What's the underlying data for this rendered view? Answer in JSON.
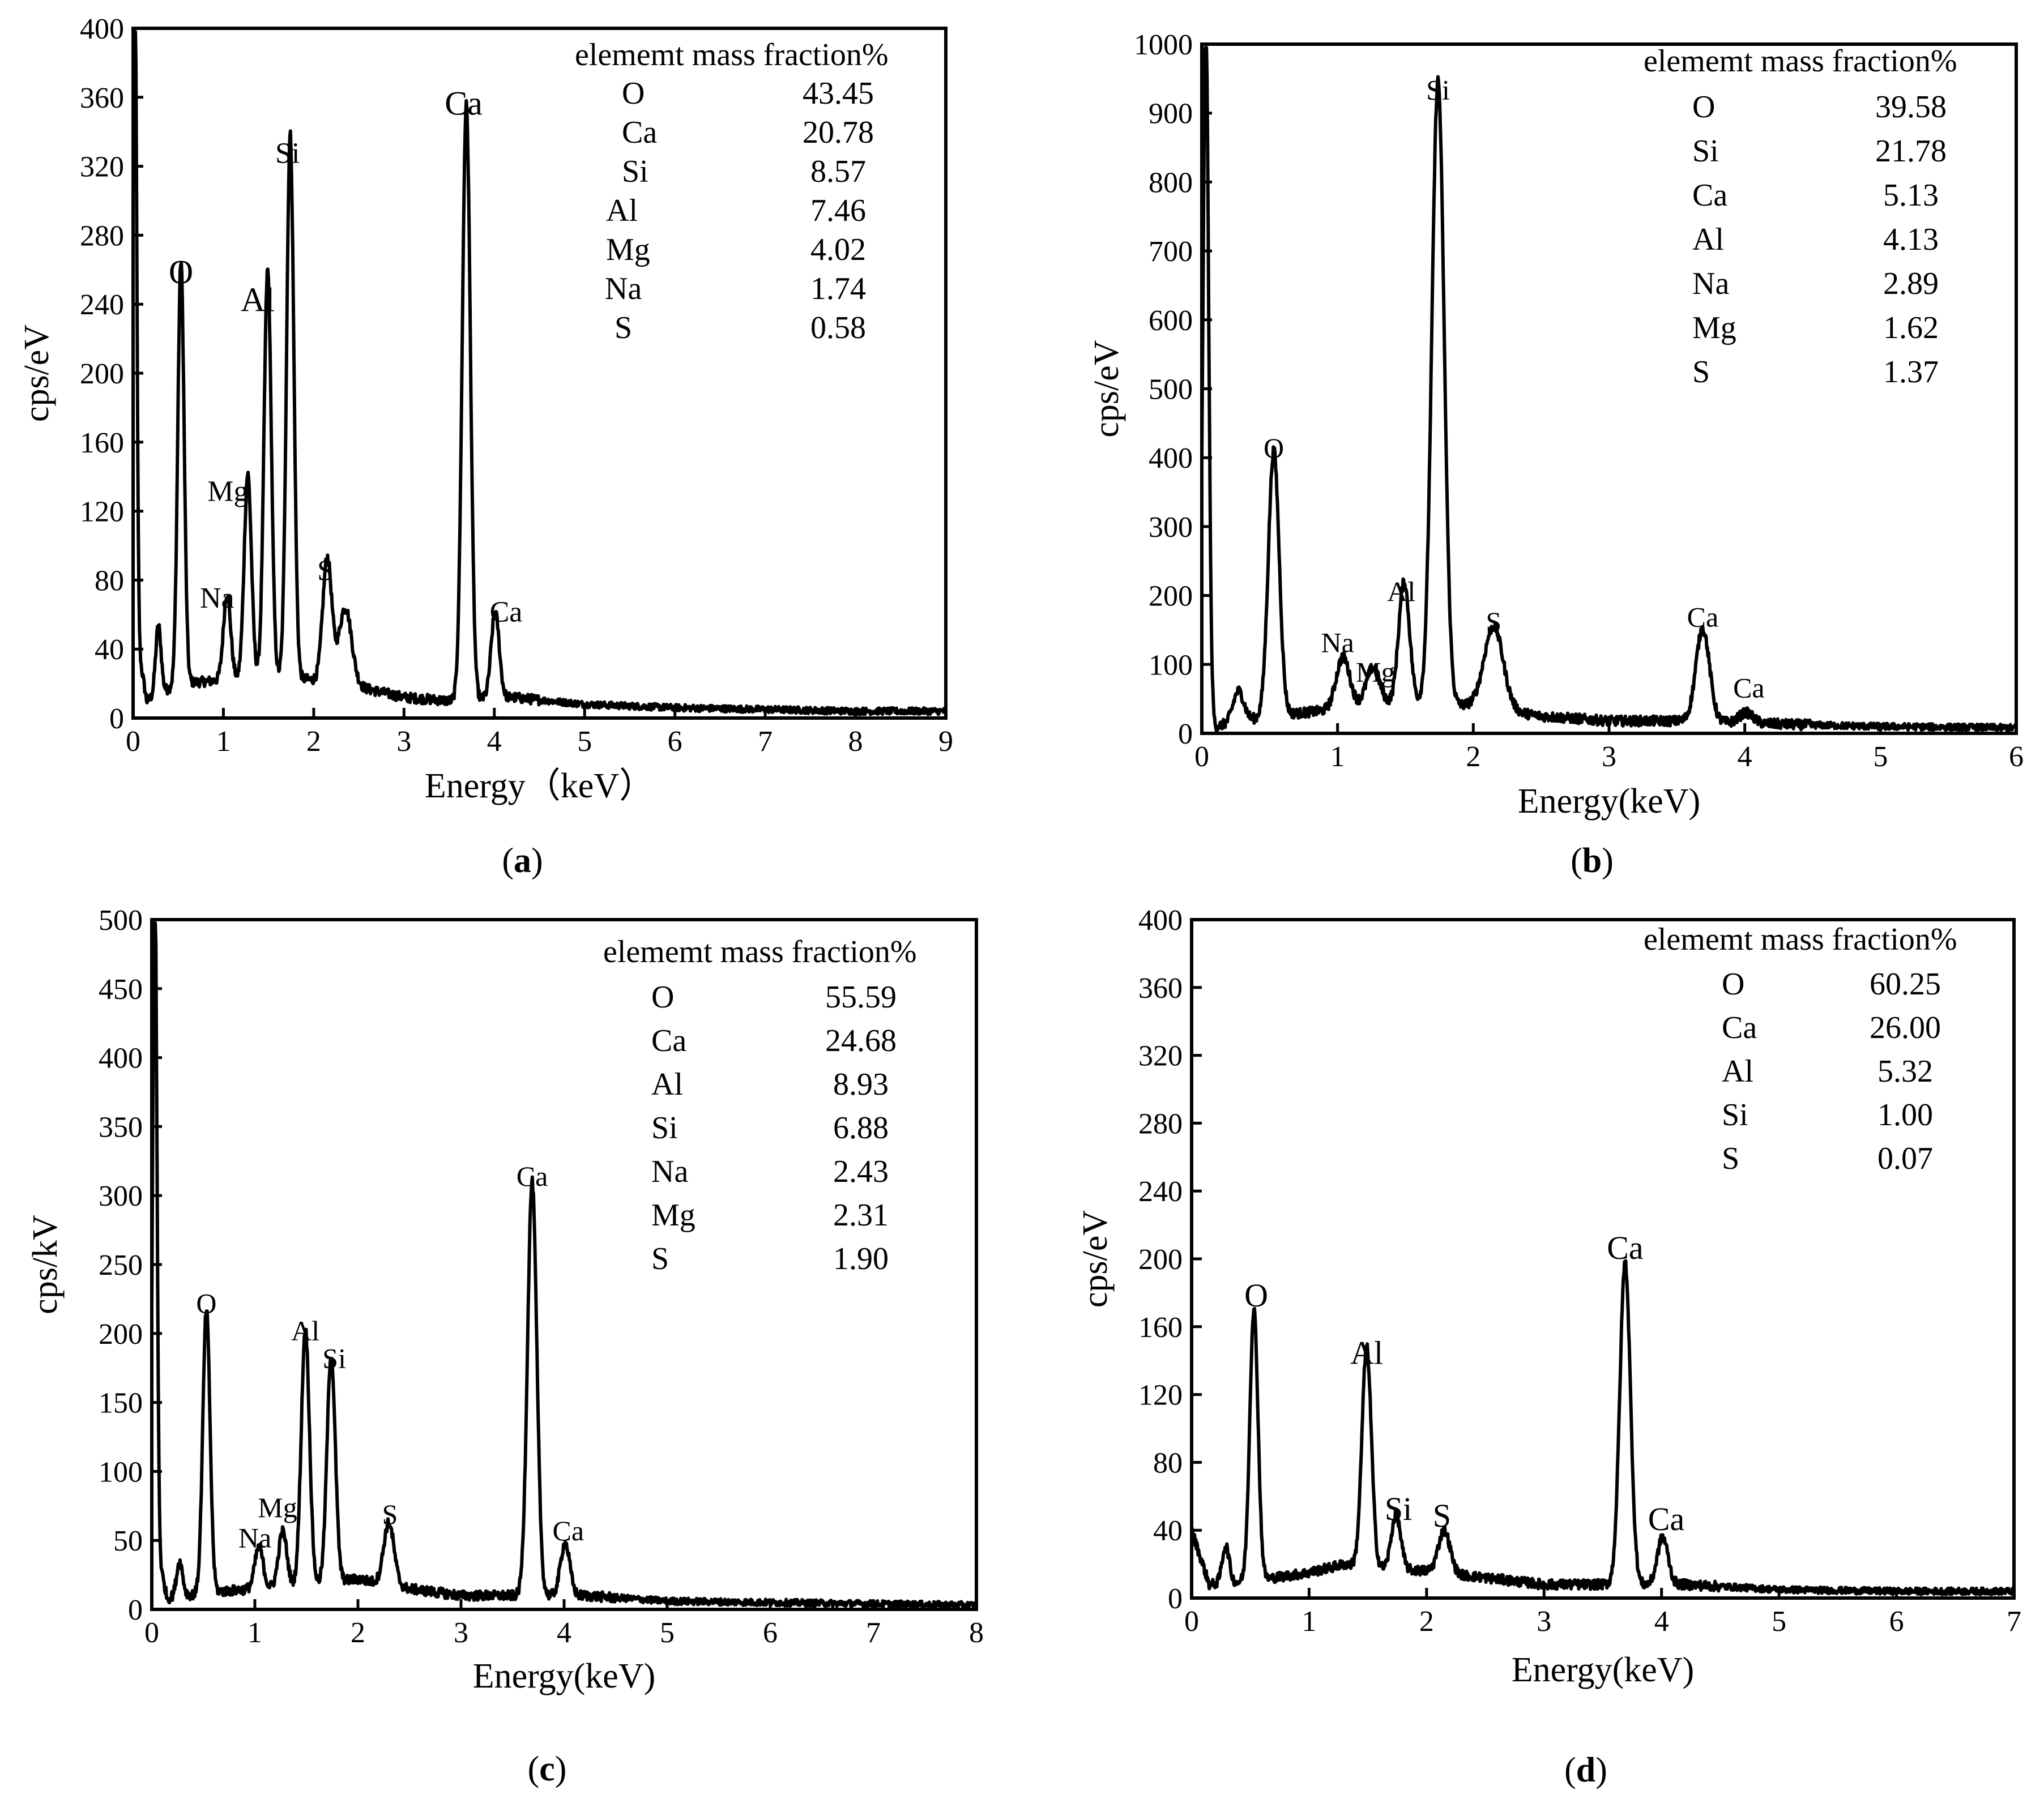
{
  "chart_data": [
    {
      "type": "line",
      "panel_label": "a",
      "xlabel": "Energy（keV）",
      "ylabel": "cps/eV",
      "xlim": [
        0,
        9
      ],
      "ylim": [
        0,
        400
      ],
      "xticks": [
        0,
        1,
        2,
        3,
        4,
        5,
        6,
        7,
        8,
        9
      ],
      "yticks": [
        0,
        40,
        80,
        120,
        160,
        200,
        240,
        280,
        320,
        360,
        400
      ],
      "base": 8,
      "baseline": [
        [
          0,
          60
        ],
        [
          0.15,
          10
        ],
        [
          0.5,
          20
        ],
        [
          1.0,
          22
        ],
        [
          1.5,
          25
        ],
        [
          2.0,
          22
        ],
        [
          2.5,
          18
        ],
        [
          3.0,
          12
        ],
        [
          3.5,
          10
        ],
        [
          4.2,
          12
        ],
        [
          5,
          8
        ],
        [
          6,
          6
        ],
        [
          7,
          5
        ],
        [
          8,
          4
        ],
        [
          9,
          4
        ]
      ],
      "peaks": [
        {
          "el": "",
          "x": 0.02,
          "y": 395,
          "w": 0.02
        },
        {
          "el": "",
          "x": 0.28,
          "y": 40,
          "w": 0.03
        },
        {
          "el": "O",
          "x": 0.53,
          "y": 245,
          "w": 0.035
        },
        {
          "el": "Na",
          "x": 1.04,
          "y": 50,
          "w": 0.04
        },
        {
          "el": "Mg",
          "x": 1.27,
          "y": 118,
          "w": 0.04
        },
        {
          "el": "Al",
          "x": 1.49,
          "y": 235,
          "w": 0.04
        },
        {
          "el": "Si",
          "x": 1.74,
          "y": 315,
          "w": 0.04
        },
        {
          "el": "S",
          "x": 2.15,
          "y": 72,
          "w": 0.05
        },
        {
          "el": "",
          "x": 2.35,
          "y": 45,
          "w": 0.07
        },
        {
          "el": "Ca",
          "x": 3.69,
          "y": 345,
          "w": 0.045
        },
        {
          "el": "Ca",
          "x": 4.01,
          "y": 50,
          "w": 0.045
        }
      ],
      "peak_labels": [
        {
          "text": "O",
          "x": 0.53,
          "y": 252
        },
        {
          "text": "Al",
          "x": 1.38,
          "y": 236
        },
        {
          "text": "Si",
          "x": 1.71,
          "y": 322
        },
        {
          "text": "Mg",
          "x": 1.05,
          "y": 126
        },
        {
          "text": "Na",
          "x": 0.93,
          "y": 64
        },
        {
          "text": "S",
          "x": 2.13,
          "y": 80
        },
        {
          "text": "Ca",
          "x": 3.66,
          "y": 350
        },
        {
          "text": "Ca",
          "x": 4.13,
          "y": 56
        }
      ],
      "table": {
        "header": "elememt mass fraction%",
        "rows": [
          {
            "element": "O",
            "value": "43.45"
          },
          {
            "element": "Ca",
            "value": "20.78"
          },
          {
            "element": "Si",
            "value": "8.57"
          },
          {
            "element": "Al",
            "value": "7.46"
          },
          {
            "element": "Mg",
            "value": "4.02"
          },
          {
            "element": "Na",
            "value": "1.74"
          },
          {
            "element": "S",
            "value": "0.58"
          }
        ]
      }
    },
    {
      "type": "line",
      "panel_label": "b",
      "xlabel": "Energy(keV)",
      "ylabel": "cps/eV",
      "xlim": [
        0,
        6
      ],
      "ylim": [
        0,
        1000
      ],
      "xticks": [
        0,
        1,
        2,
        3,
        4,
        5,
        6
      ],
      "yticks": [
        0,
        100,
        200,
        300,
        400,
        500,
        600,
        700,
        800,
        900,
        1000
      ],
      "base": 15,
      "baseline": [
        [
          0,
          80
        ],
        [
          0.1,
          10
        ],
        [
          0.5,
          25
        ],
        [
          1.0,
          35
        ],
        [
          1.5,
          45
        ],
        [
          2.0,
          40
        ],
        [
          2.5,
          25
        ],
        [
          3.0,
          18
        ],
        [
          3.5,
          18
        ],
        [
          4.0,
          15
        ],
        [
          4.5,
          12
        ],
        [
          5,
          10
        ],
        [
          6,
          8
        ]
      ],
      "peaks": [
        {
          "el": "",
          "x": 0.03,
          "y": 980,
          "w": 0.02
        },
        {
          "el": "",
          "x": 0.27,
          "y": 45,
          "w": 0.04
        },
        {
          "el": "O",
          "x": 0.53,
          "y": 385,
          "w": 0.04
        },
        {
          "el": "Na",
          "x": 1.04,
          "y": 75,
          "w": 0.05
        },
        {
          "el": "Mg",
          "x": 1.26,
          "y": 55,
          "w": 0.05
        },
        {
          "el": "Al",
          "x": 1.49,
          "y": 175,
          "w": 0.04
        },
        {
          "el": "Si",
          "x": 1.74,
          "y": 905,
          "w": 0.045
        },
        {
          "el": "S",
          "x": 2.15,
          "y": 120,
          "w": 0.07
        },
        {
          "el": "Ca",
          "x": 3.69,
          "y": 135,
          "w": 0.05
        },
        {
          "el": "Ca",
          "x": 4.01,
          "y": 15,
          "w": 0.05
        }
      ],
      "peak_labels": [
        {
          "text": "Si",
          "x": 1.74,
          "y": 920
        },
        {
          "text": "O",
          "x": 0.53,
          "y": 400
        },
        {
          "text": "Al",
          "x": 1.47,
          "y": 192
        },
        {
          "text": "Na",
          "x": 1.0,
          "y": 118
        },
        {
          "text": "Mg",
          "x": 1.28,
          "y": 75
        },
        {
          "text": "S",
          "x": 2.15,
          "y": 148
        },
        {
          "text": "Ca",
          "x": 3.69,
          "y": 155
        },
        {
          "text": "Ca",
          "x": 4.03,
          "y": 52
        }
      ],
      "table": {
        "header": "elememt mass fraction%",
        "rows": [
          {
            "element": "O",
            "value": "39.58"
          },
          {
            "element": "Si",
            "value": "21.78"
          },
          {
            "element": "Ca",
            "value": "5.13"
          },
          {
            "element": "Al",
            "value": "4.13"
          },
          {
            "element": "Na",
            "value": "2.89"
          },
          {
            "element": "Mg",
            "value": "1.62"
          },
          {
            "element": "S",
            "value": "1.37"
          }
        ]
      }
    },
    {
      "type": "line",
      "panel_label": "c",
      "xlabel": "Energy(keV)",
      "ylabel": "cps/kV",
      "xlim": [
        0,
        8
      ],
      "ylim": [
        0,
        500
      ],
      "xticks": [
        0,
        1,
        2,
        3,
        4,
        5,
        6,
        7,
        8
      ],
      "yticks": [
        0,
        50,
        100,
        150,
        200,
        250,
        300,
        350,
        400,
        450,
        500
      ],
      "base": 5,
      "baseline": [
        [
          0,
          60
        ],
        [
          0.15,
          8
        ],
        [
          0.5,
          12
        ],
        [
          1.0,
          15
        ],
        [
          1.5,
          18
        ],
        [
          2.0,
          22
        ],
        [
          2.5,
          15
        ],
        [
          3.0,
          10
        ],
        [
          3.5,
          10
        ],
        [
          4.2,
          10
        ],
        [
          5,
          6
        ],
        [
          6,
          5
        ],
        [
          7,
          4
        ],
        [
          8,
          3
        ]
      ],
      "peaks": [
        {
          "el": "",
          "x": 0.03,
          "y": 490,
          "w": 0.02
        },
        {
          "el": "",
          "x": 0.27,
          "y": 25,
          "w": 0.03
        },
        {
          "el": "O",
          "x": 0.53,
          "y": 205,
          "w": 0.035
        },
        {
          "el": "Na",
          "x": 1.04,
          "y": 30,
          "w": 0.04
        },
        {
          "el": "Mg",
          "x": 1.27,
          "y": 40,
          "w": 0.04
        },
        {
          "el": "Al",
          "x": 1.49,
          "y": 185,
          "w": 0.04
        },
        {
          "el": "Si",
          "x": 1.74,
          "y": 165,
          "w": 0.04
        },
        {
          "el": "S",
          "x": 2.3,
          "y": 45,
          "w": 0.05
        },
        {
          "el": "Ca",
          "x": 3.69,
          "y": 300,
          "w": 0.045
        },
        {
          "el": "Ca",
          "x": 4.01,
          "y": 38,
          "w": 0.045
        }
      ],
      "peak_labels": [
        {
          "text": "O",
          "x": 0.53,
          "y": 215
        },
        {
          "text": "Al",
          "x": 1.49,
          "y": 195
        },
        {
          "text": "Si",
          "x": 1.77,
          "y": 175
        },
        {
          "text": "Mg",
          "x": 1.22,
          "y": 67
        },
        {
          "text": "Na",
          "x": 1.0,
          "y": 45
        },
        {
          "text": "S",
          "x": 2.31,
          "y": 62
        },
        {
          "text": "Ca",
          "x": 3.69,
          "y": 307
        },
        {
          "text": "Ca",
          "x": 4.04,
          "y": 50
        }
      ],
      "table": {
        "header": "elememt mass fraction%",
        "rows": [
          {
            "element": "O",
            "value": "55.59"
          },
          {
            "element": "Ca",
            "value": "24.68"
          },
          {
            "element": "Al",
            "value": "8.93"
          },
          {
            "element": "Si",
            "value": "6.88"
          },
          {
            "element": "Na",
            "value": "2.43"
          },
          {
            "element": "Mg",
            "value": "2.31"
          },
          {
            "element": "S",
            "value": "1.90"
          }
        ]
      }
    },
    {
      "type": "line",
      "panel_label": "d",
      "xlabel": "Energy(keV)",
      "ylabel": "cps/eV",
      "xlim": [
        0,
        7
      ],
      "ylim": [
        0,
        400
      ],
      "xticks": [
        0,
        1,
        2,
        3,
        4,
        5,
        6,
        7
      ],
      "yticks": [
        0,
        40,
        80,
        120,
        160,
        200,
        240,
        280,
        320,
        360,
        400
      ],
      "base": 5,
      "baseline": [
        [
          0,
          40
        ],
        [
          0.15,
          8
        ],
        [
          0.5,
          10
        ],
        [
          1.0,
          15
        ],
        [
          1.3,
          20
        ],
        [
          1.5,
          18
        ],
        [
          2.0,
          16
        ],
        [
          2.5,
          12
        ],
        [
          3.0,
          8
        ],
        [
          3.5,
          8
        ],
        [
          4.2,
          8
        ],
        [
          5,
          5
        ],
        [
          6,
          4
        ],
        [
          7,
          4
        ]
      ],
      "peaks": [
        {
          "el": "",
          "x": 0.29,
          "y": 22,
          "w": 0.03
        },
        {
          "el": "O",
          "x": 0.53,
          "y": 160,
          "w": 0.035
        },
        {
          "el": "Al",
          "x": 1.49,
          "y": 130,
          "w": 0.04
        },
        {
          "el": "Si",
          "x": 1.74,
          "y": 32,
          "w": 0.04
        },
        {
          "el": "S",
          "x": 2.15,
          "y": 25,
          "w": 0.05
        },
        {
          "el": "Ca",
          "x": 3.69,
          "y": 190,
          "w": 0.045
        },
        {
          "el": "Ca",
          "x": 4.01,
          "y": 28,
          "w": 0.045
        }
      ],
      "peak_labels": [
        {
          "text": "O",
          "x": 0.55,
          "y": 172
        },
        {
          "text": "Al",
          "x": 1.49,
          "y": 138
        },
        {
          "text": "Si",
          "x": 1.76,
          "y": 46
        },
        {
          "text": "S",
          "x": 2.13,
          "y": 42
        },
        {
          "text": "Ca",
          "x": 3.69,
          "y": 200
        },
        {
          "text": "Ca",
          "x": 4.04,
          "y": 40
        }
      ],
      "table": {
        "header": "elememt mass fraction%",
        "rows": [
          {
            "element": "O",
            "value": "60.25"
          },
          {
            "element": "Ca",
            "value": "26.00"
          },
          {
            "element": "Al",
            "value": "5.32"
          },
          {
            "element": "Si",
            "value": "1.00"
          },
          {
            "element": "S",
            "value": "0.07"
          }
        ]
      }
    }
  ]
}
